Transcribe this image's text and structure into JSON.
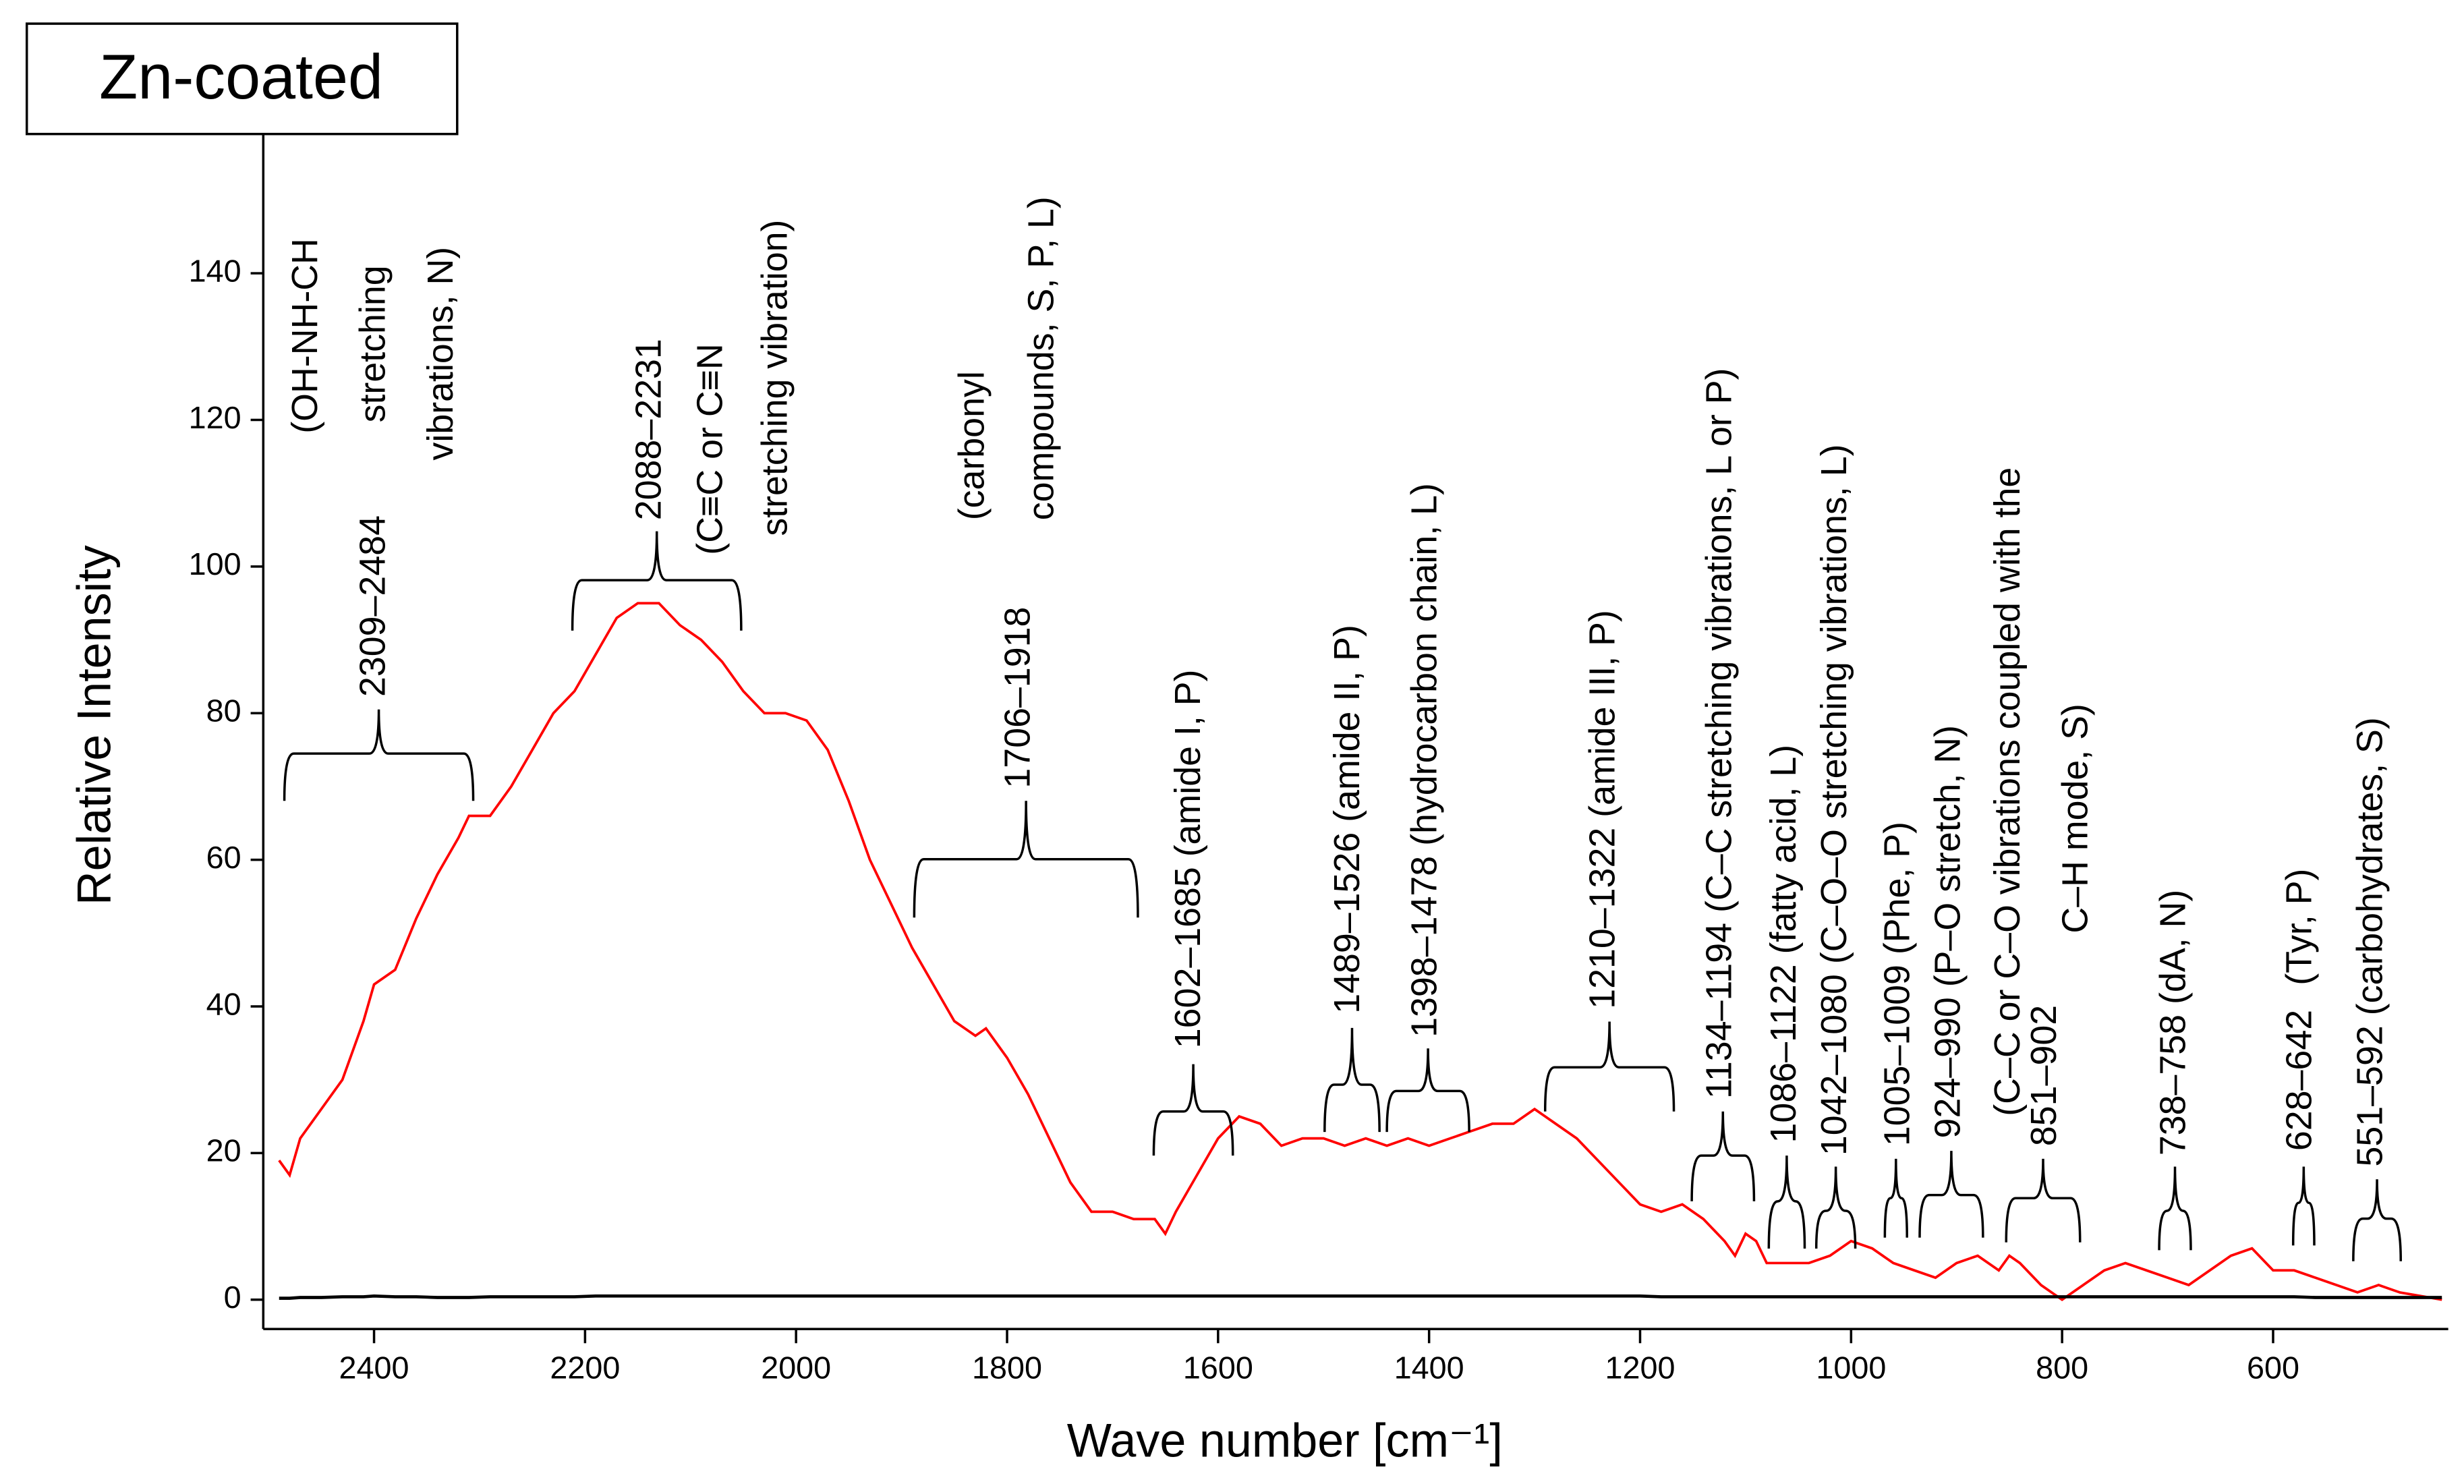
{
  "chart_data": {
    "type": "line",
    "title": "Zn-coated",
    "xlabel": "Wave number [cm⁻¹]",
    "ylabel": "Relative Intensity",
    "xlim": [
      2505,
      434
    ],
    "ylim": [
      -4,
      159
    ],
    "xticks": [
      2400,
      2200,
      2000,
      1800,
      1600,
      1400,
      1200,
      1000,
      800,
      600
    ],
    "yticks": [
      0,
      20,
      40,
      60,
      80,
      100,
      120,
      140
    ],
    "x": [
      2490,
      2480,
      2470,
      2450,
      2430,
      2410,
      2400,
      2380,
      2360,
      2340,
      2320,
      2310,
      2290,
      2270,
      2250,
      2230,
      2210,
      2190,
      2170,
      2150,
      2130,
      2110,
      2090,
      2070,
      2050,
      2030,
      2010,
      1990,
      1970,
      1950,
      1930,
      1910,
      1890,
      1870,
      1850,
      1830,
      1820,
      1800,
      1780,
      1760,
      1740,
      1720,
      1700,
      1680,
      1660,
      1650,
      1640,
      1620,
      1600,
      1580,
      1560,
      1540,
      1520,
      1500,
      1480,
      1460,
      1440,
      1420,
      1400,
      1380,
      1360,
      1340,
      1320,
      1300,
      1280,
      1260,
      1240,
      1220,
      1200,
      1180,
      1160,
      1140,
      1120,
      1110,
      1100,
      1090,
      1080,
      1060,
      1040,
      1020,
      1000,
      980,
      960,
      940,
      920,
      900,
      880,
      860,
      850,
      840,
      820,
      800,
      780,
      760,
      740,
      720,
      700,
      680,
      660,
      640,
      620,
      600,
      580,
      560,
      540,
      520,
      500,
      480,
      440
    ],
    "series": [
      {
        "name": "Zn-coated",
        "color": "#ff0000",
        "values": [
          19,
          17,
          22,
          26,
          30,
          38,
          43,
          45,
          52,
          58,
          63,
          66,
          66,
          70,
          75,
          80,
          83,
          88,
          93,
          95,
          95,
          92,
          90,
          87,
          83,
          80,
          80,
          79,
          75,
          68,
          60,
          54,
          48,
          43,
          38,
          36,
          37,
          33,
          28,
          22,
          16,
          12,
          12,
          11,
          11,
          9,
          12,
          17,
          22,
          25,
          24,
          21,
          22,
          22,
          21,
          22,
          21,
          22,
          21,
          22,
          23,
          24,
          24,
          26,
          24,
          22,
          19,
          16,
          13,
          12,
          13,
          11,
          8,
          6,
          9,
          8,
          5,
          5,
          5,
          6,
          8,
          7,
          5,
          4,
          3,
          5,
          6,
          4,
          6,
          5,
          2,
          0,
          2,
          4,
          5,
          4,
          3,
          2,
          4,
          6,
          7,
          4,
          4,
          3,
          2,
          1,
          2,
          1,
          0
        ]
      },
      {
        "name": "baseline",
        "color": "#000000",
        "values": [
          0.2,
          0.2,
          0.3,
          0.3,
          0.4,
          0.4,
          0.5,
          0.4,
          0.4,
          0.3,
          0.3,
          0.3,
          0.4,
          0.4,
          0.4,
          0.4,
          0.4,
          0.5,
          0.5,
          0.5,
          0.5,
          0.5,
          0.5,
          0.5,
          0.5,
          0.5,
          0.5,
          0.5,
          0.5,
          0.5,
          0.5,
          0.5,
          0.5,
          0.5,
          0.5,
          0.5,
          0.5,
          0.5,
          0.5,
          0.5,
          0.5,
          0.5,
          0.5,
          0.5,
          0.5,
          0.5,
          0.5,
          0.5,
          0.5,
          0.5,
          0.5,
          0.5,
          0.5,
          0.5,
          0.5,
          0.5,
          0.5,
          0.5,
          0.5,
          0.5,
          0.5,
          0.5,
          0.5,
          0.5,
          0.5,
          0.5,
          0.5,
          0.5,
          0.5,
          0.4,
          0.4,
          0.4,
          0.4,
          0.4,
          0.4,
          0.4,
          0.4,
          0.4,
          0.4,
          0.4,
          0.4,
          0.4,
          0.4,
          0.4,
          0.4,
          0.4,
          0.4,
          0.4,
          0.4,
          0.4,
          0.4,
          0.4,
          0.4,
          0.4,
          0.4,
          0.4,
          0.4,
          0.4,
          0.4,
          0.4,
          0.4,
          0.4,
          0.4,
          0.3,
          0.3,
          0.3,
          0.3,
          0.3,
          0.3
        ]
      }
    ],
    "annotations": [
      {
        "range": [
          2485,
          2306
        ],
        "texts": [
          "2309–2484",
          "(OH-NH-CH",
          "stretching",
          "vibrations, N)"
        ]
      },
      {
        "range": [
          2212,
          2052
        ],
        "texts": [
          "2088–2231",
          "(C≡C or C≡N",
          "stretching vibration)"
        ]
      },
      {
        "range": [
          1888,
          1676
        ],
        "texts": [
          "1706–1918",
          "(carbonyl",
          "compounds, S, P, L)"
        ]
      },
      {
        "range": [
          1661,
          1586
        ],
        "texts": [
          "1602–1685 (amide I, P)"
        ]
      },
      {
        "range": [
          1499,
          1447
        ],
        "texts": [
          "1489–1526 (amide II, P)"
        ]
      },
      {
        "range": [
          1440,
          1362
        ],
        "texts": [
          "1398–1478 (hydrocarbon chain, L)"
        ]
      },
      {
        "range": [
          1290,
          1168
        ],
        "texts": [
          "1210–1322 (amide III, P)"
        ]
      },
      {
        "range": [
          1151,
          1092
        ],
        "texts": [
          "1134–1194 (C–C stretching vibrations, L or P)"
        ]
      },
      {
        "range": [
          1078,
          1044
        ],
        "texts": [
          "1086–1122 (fatty acid, L)"
        ]
      },
      {
        "range": [
          1033,
          996
        ],
        "texts": [
          "1042–1080 (C–O–O stretching vibrations, L)"
        ]
      },
      {
        "range": [
          968,
          947
        ],
        "texts": [
          "1005–1009 (Phe, P)"
        ]
      },
      {
        "range": [
          935,
          875
        ],
        "texts": [
          "924–990 (P–O stretch, N)"
        ]
      },
      {
        "range": [
          853,
          783
        ],
        "texts": [
          "851–902",
          "(C–C or C–O vibrations coupled with the",
          "C–H mode, S)"
        ]
      },
      {
        "range": [
          708,
          678
        ],
        "texts": [
          "738–758 (dA, N)"
        ]
      },
      {
        "range": [
          581,
          561
        ],
        "texts": [
          "628–642",
          "(Tyr, P)"
        ]
      },
      {
        "range": [
          524,
          479
        ],
        "texts": [
          "551–592 (carbohydrates, S)"
        ]
      }
    ]
  }
}
